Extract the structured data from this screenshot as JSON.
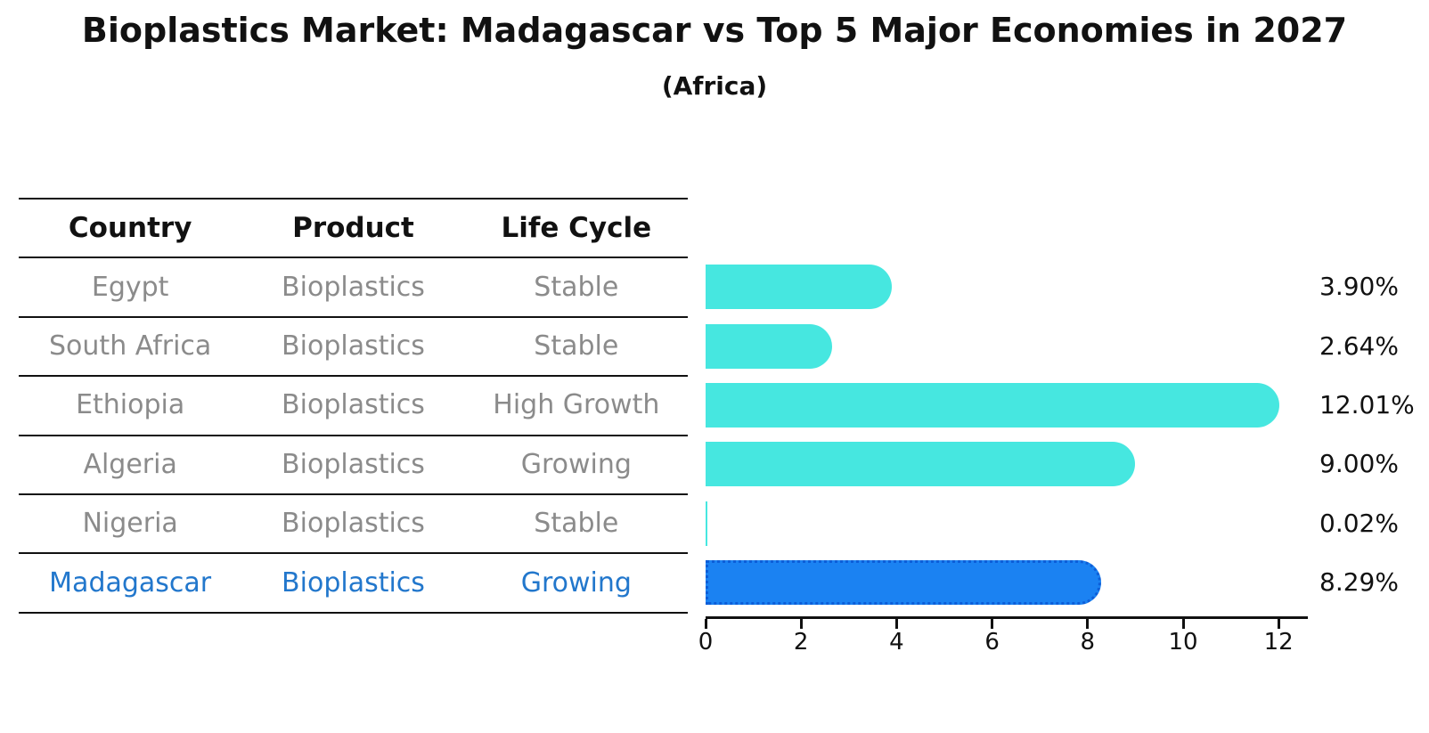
{
  "title": "Bioplastics Market: Madagascar vs Top 5 Major Economies in 2027",
  "subtitle": "(Africa)",
  "table": {
    "headers": [
      "Country",
      "Product",
      "Life Cycle"
    ],
    "rows": [
      {
        "country": "Egypt",
        "product": "Bioplastics",
        "life_cycle": "Stable",
        "value": 3.9,
        "value_label": "3.90%",
        "highlight": false
      },
      {
        "country": "South Africa",
        "product": "Bioplastics",
        "life_cycle": "Stable",
        "value": 2.64,
        "value_label": "2.64%",
        "highlight": false
      },
      {
        "country": "Ethiopia",
        "product": "Bioplastics",
        "life_cycle": "High Growth",
        "value": 12.01,
        "value_label": "12.01%",
        "highlight": false
      },
      {
        "country": "Algeria",
        "product": "Bioplastics",
        "life_cycle": "Growing",
        "value": 9.0,
        "value_label": "9.00%",
        "highlight": false
      },
      {
        "country": "Nigeria",
        "product": "Bioplastics",
        "life_cycle": "Stable",
        "value": 0.02,
        "value_label": "0.02%",
        "highlight": false
      },
      {
        "country": "Madagascar",
        "product": "Bioplastics",
        "life_cycle": "Growing",
        "value": 8.29,
        "value_label": "8.29%",
        "highlight": true
      }
    ]
  },
  "chart_data": {
    "type": "bar",
    "orientation": "horizontal",
    "title": "Bioplastics Market: Madagascar vs Top 5 Major Economies in 2027",
    "subtitle": "(Africa)",
    "categories": [
      "Egypt",
      "South Africa",
      "Ethiopia",
      "Algeria",
      "Nigeria",
      "Madagascar"
    ],
    "values": [
      3.9,
      2.64,
      12.01,
      9.0,
      0.02,
      8.29
    ],
    "value_labels": [
      "3.90%",
      "2.64%",
      "12.01%",
      "9.00%",
      "0.02%",
      "8.29%"
    ],
    "xlabel": "",
    "ylabel": "",
    "xlim": [
      0,
      12.6
    ],
    "xticks": [
      0,
      2,
      4,
      6,
      8,
      10,
      12
    ],
    "grid": false,
    "legend": false,
    "highlight_index": 5
  },
  "colors": {
    "bar_default": "#46e7e0",
    "bar_highlight": "#1b82f2",
    "bar_highlight_edge": "#0d5ed8",
    "highlight_text": "#2277cc",
    "cell_text": "#8b8b8b",
    "axis": "#111111"
  }
}
